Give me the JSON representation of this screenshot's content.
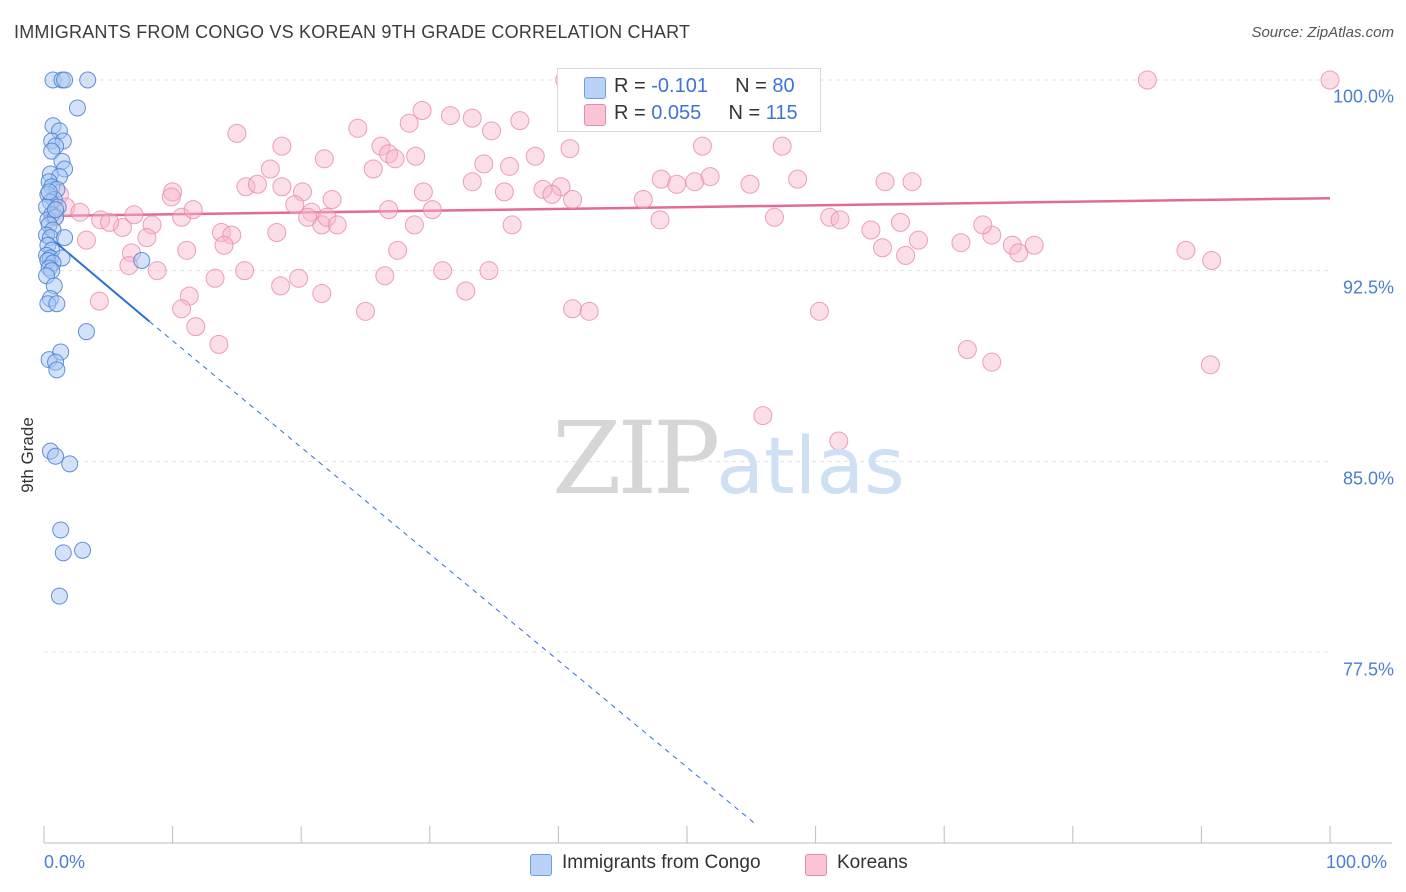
{
  "header": {
    "title": "IMMIGRANTS FROM CONGO VS KOREAN 9TH GRADE CORRELATION CHART",
    "source": "Source: ZipAtlas.com"
  },
  "watermark": {
    "zip": "ZIP",
    "atlas": "atlas"
  },
  "legend": {
    "r_label": "R =",
    "n_label": "N =",
    "series": [
      {
        "r": "-0.101",
        "n": "80"
      },
      {
        "r": "0.055",
        "n": "115"
      }
    ]
  },
  "bottom_legend": [
    "Immigrants from Congo",
    "Koreans"
  ],
  "colors": {
    "congo_fill": "#a8c6f2",
    "congo_stroke": "#4a7fd1",
    "congo_line": "#2e6fd6",
    "korean_fill": "#f7b6cb",
    "korean_stroke": "#e88aa8",
    "korean_line": "#e36a95",
    "tick_text": "#4a7fd1"
  },
  "chart_data": {
    "type": "scatter",
    "title": "IMMIGRANTS FROM CONGO VS KOREAN 9TH GRADE CORRELATION CHART",
    "xlabel": "",
    "ylabel": "9th Grade",
    "xlim": [
      0,
      100
    ],
    "ylim": [
      70.7,
      100.9
    ],
    "x_tick_labels": [
      "0.0%",
      "100.0%"
    ],
    "y_ticks": [
      77.5,
      85.0,
      92.5,
      100.0
    ],
    "y_tick_labels": [
      "77.5%",
      "85.0%",
      "92.5%",
      "100.0%"
    ],
    "grid": true,
    "legend_position": "top-center",
    "series": [
      {
        "name": "Immigrants from Congo",
        "r": -0.101,
        "n": 80,
        "trend": {
          "x": [
            0,
            8.2
          ],
          "y": [
            94.0,
            90.5
          ],
          "dashed_to": [
            55.4,
            70.7
          ]
        },
        "points": [
          [
            0.7,
            100.0
          ],
          [
            1.4,
            100.0
          ],
          [
            1.6,
            100.0
          ],
          [
            3.4,
            100.0
          ],
          [
            2.6,
            98.9
          ],
          [
            0.7,
            98.2
          ],
          [
            1.2,
            98.0
          ],
          [
            0.6,
            97.6
          ],
          [
            1.5,
            97.6
          ],
          [
            0.9,
            97.4
          ],
          [
            0.6,
            97.2
          ],
          [
            1.4,
            96.8
          ],
          [
            1.6,
            96.5
          ],
          [
            0.5,
            96.3
          ],
          [
            1.2,
            96.2
          ],
          [
            0.4,
            96.0
          ],
          [
            0.6,
            95.8
          ],
          [
            1.0,
            95.7
          ],
          [
            0.3,
            95.5
          ],
          [
            0.8,
            95.3
          ],
          [
            0.5,
            95.2
          ],
          [
            0.2,
            95.0
          ],
          [
            1.1,
            95.0
          ],
          [
            0.6,
            94.7
          ],
          [
            0.3,
            94.5
          ],
          [
            0.9,
            94.6
          ],
          [
            0.4,
            94.3
          ],
          [
            0.7,
            94.1
          ],
          [
            0.2,
            93.9
          ],
          [
            0.5,
            93.8
          ],
          [
            1.6,
            93.8
          ],
          [
            0.3,
            93.5
          ],
          [
            0.6,
            93.3
          ],
          [
            0.2,
            93.1
          ],
          [
            0.5,
            93.0
          ],
          [
            1.4,
            93.0
          ],
          [
            0.3,
            92.9
          ],
          [
            0.7,
            92.8
          ],
          [
            7.6,
            92.9
          ],
          [
            0.4,
            92.6
          ],
          [
            0.6,
            92.5
          ],
          [
            0.2,
            92.3
          ],
          [
            0.8,
            91.9
          ],
          [
            0.5,
            91.4
          ],
          [
            0.3,
            91.2
          ],
          [
            1.0,
            91.2
          ],
          [
            3.3,
            90.1
          ],
          [
            0.4,
            89.0
          ],
          [
            1.3,
            89.3
          ],
          [
            0.9,
            88.9
          ],
          [
            1.0,
            88.6
          ],
          [
            0.5,
            85.4
          ],
          [
            0.9,
            85.2
          ],
          [
            2.0,
            84.9
          ],
          [
            1.3,
            82.3
          ],
          [
            3.0,
            81.5
          ],
          [
            1.5,
            81.4
          ],
          [
            1.2,
            79.7
          ],
          [
            0.4,
            95.6
          ],
          [
            0.9,
            94.9
          ]
        ]
      },
      {
        "name": "Koreans",
        "r": 0.055,
        "n": 115,
        "trend": {
          "x": [
            0,
            100
          ],
          "y": [
            94.65,
            95.35
          ]
        },
        "points": [
          [
            100.0,
            100.0
          ],
          [
            85.8,
            100.0
          ],
          [
            40.5,
            100.0
          ],
          [
            29.4,
            98.8
          ],
          [
            31.6,
            98.6
          ],
          [
            24.4,
            98.1
          ],
          [
            28.4,
            98.3
          ],
          [
            33.3,
            98.5
          ],
          [
            37.0,
            98.4
          ],
          [
            34.8,
            98.0
          ],
          [
            15.0,
            97.9
          ],
          [
            18.5,
            97.4
          ],
          [
            26.2,
            97.4
          ],
          [
            28.9,
            97.0
          ],
          [
            26.8,
            97.1
          ],
          [
            27.3,
            96.9
          ],
          [
            21.8,
            96.9
          ],
          [
            34.2,
            96.7
          ],
          [
            36.2,
            96.6
          ],
          [
            25.6,
            96.5
          ],
          [
            17.6,
            96.5
          ],
          [
            38.2,
            97.0
          ],
          [
            40.9,
            97.3
          ],
          [
            51.2,
            97.4
          ],
          [
            48.0,
            96.1
          ],
          [
            50.6,
            96.0
          ],
          [
            54.9,
            95.9
          ],
          [
            33.3,
            96.0
          ],
          [
            35.8,
            95.6
          ],
          [
            29.5,
            95.6
          ],
          [
            38.8,
            95.7
          ],
          [
            40.2,
            95.8
          ],
          [
            39.5,
            95.5
          ],
          [
            41.1,
            95.3
          ],
          [
            46.6,
            95.3
          ],
          [
            18.5,
            95.8
          ],
          [
            15.7,
            95.8
          ],
          [
            16.6,
            95.9
          ],
          [
            10.0,
            95.6
          ],
          [
            20.1,
            95.6
          ],
          [
            22.4,
            95.3
          ],
          [
            19.5,
            95.1
          ],
          [
            20.8,
            94.8
          ],
          [
            26.8,
            94.9
          ],
          [
            30.2,
            94.9
          ],
          [
            21.6,
            94.3
          ],
          [
            20.5,
            94.6
          ],
          [
            22.0,
            94.6
          ],
          [
            1.2,
            95.5
          ],
          [
            1.7,
            95.0
          ],
          [
            0.8,
            94.6
          ],
          [
            2.8,
            94.8
          ],
          [
            4.4,
            94.5
          ],
          [
            6.1,
            94.2
          ],
          [
            8.4,
            94.3
          ],
          [
            10.7,
            94.6
          ],
          [
            5.1,
            94.4
          ],
          [
            7.0,
            94.7
          ],
          [
            13.8,
            94.0
          ],
          [
            14.6,
            93.9
          ],
          [
            11.1,
            93.3
          ],
          [
            14.0,
            93.5
          ],
          [
            8.0,
            93.8
          ],
          [
            6.8,
            93.2
          ],
          [
            3.3,
            93.7
          ],
          [
            22.8,
            94.3
          ],
          [
            18.1,
            94.0
          ],
          [
            28.8,
            94.3
          ],
          [
            27.5,
            93.3
          ],
          [
            36.4,
            94.3
          ],
          [
            47.9,
            94.5
          ],
          [
            56.8,
            94.6
          ],
          [
            61.1,
            94.6
          ],
          [
            61.9,
            94.5
          ],
          [
            66.6,
            94.4
          ],
          [
            64.3,
            94.1
          ],
          [
            65.2,
            93.4
          ],
          [
            68.0,
            93.7
          ],
          [
            71.3,
            93.6
          ],
          [
            73.7,
            93.9
          ],
          [
            75.3,
            93.5
          ],
          [
            75.8,
            93.2
          ],
          [
            77.0,
            93.5
          ],
          [
            73.0,
            94.3
          ],
          [
            67.0,
            93.1
          ],
          [
            88.8,
            93.3
          ],
          [
            90.8,
            92.9
          ],
          [
            57.4,
            97.4
          ],
          [
            58.6,
            96.1
          ],
          [
            65.4,
            96.0
          ],
          [
            67.5,
            96.0
          ],
          [
            51.8,
            96.2
          ],
          [
            49.2,
            95.9
          ],
          [
            9.9,
            95.4
          ],
          [
            11.6,
            94.9
          ],
          [
            6.6,
            92.7
          ],
          [
            8.8,
            92.5
          ],
          [
            13.3,
            92.2
          ],
          [
            15.6,
            92.5
          ],
          [
            18.4,
            91.9
          ],
          [
            21.6,
            91.6
          ],
          [
            26.5,
            92.3
          ],
          [
            31.0,
            92.5
          ],
          [
            32.8,
            91.7
          ],
          [
            34.6,
            92.5
          ],
          [
            19.8,
            92.2
          ],
          [
            4.3,
            91.3
          ],
          [
            11.3,
            91.5
          ],
          [
            10.7,
            91.0
          ],
          [
            25.0,
            90.9
          ],
          [
            41.1,
            91.0
          ],
          [
            42.4,
            90.9
          ],
          [
            60.3,
            90.9
          ],
          [
            71.8,
            89.4
          ],
          [
            73.7,
            88.9
          ],
          [
            90.7,
            88.8
          ],
          [
            11.8,
            90.3
          ],
          [
            13.6,
            89.6
          ],
          [
            55.9,
            86.8
          ],
          [
            61.8,
            85.8
          ]
        ]
      }
    ]
  }
}
